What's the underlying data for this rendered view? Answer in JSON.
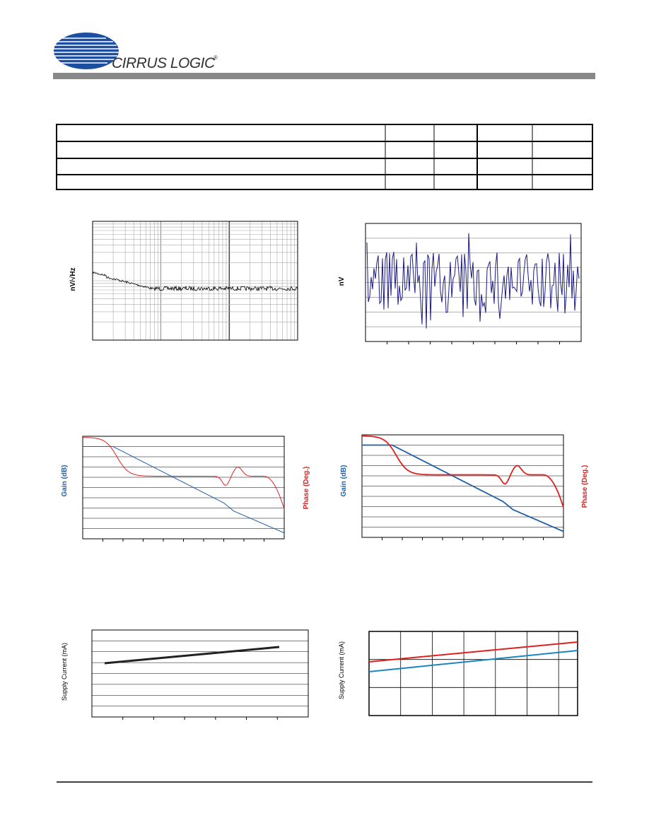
{
  "header": {
    "logo": "CIRRUS LOGIC",
    "logo_mark": "®"
  },
  "charts": [
    {
      "y_label": "nV/√Hz"
    },
    {
      "y_label": "nV"
    },
    {
      "y_label": "Gain (dB)",
      "y2_label": "Phase (Deg.)"
    },
    {
      "y_label": "Gain (dB)",
      "y2_label": "Phase (Deg.)"
    },
    {
      "y_label": "Supply Current (mA)"
    },
    {
      "y_label": "Supply Current (mA)"
    }
  ]
}
